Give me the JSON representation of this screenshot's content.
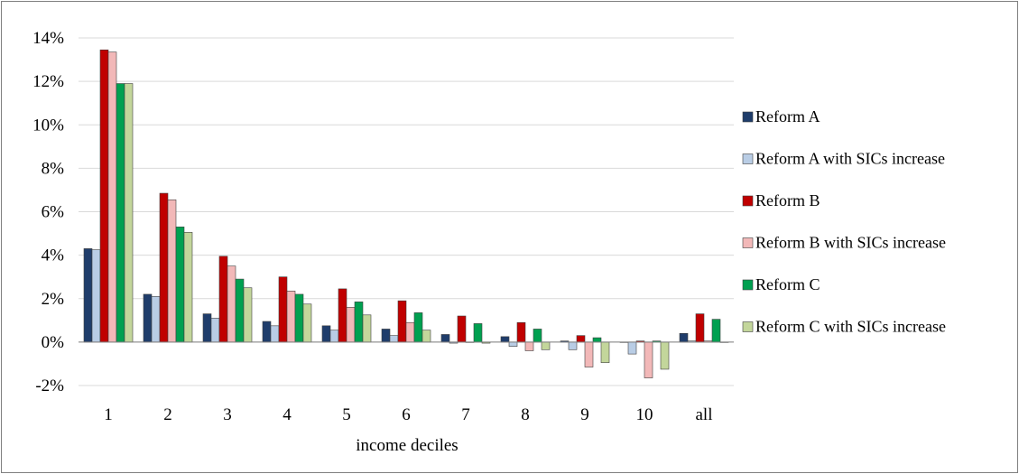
{
  "chart_data": {
    "type": "bar",
    "title": "",
    "xlabel": "income deciles",
    "ylabel": "",
    "ylim": [
      -2,
      14
    ],
    "y_tick_step": 2,
    "y_tick_format": "percent",
    "grid": true,
    "legend_position": "right",
    "categories": [
      "1",
      "2",
      "3",
      "4",
      "5",
      "6",
      "7",
      "8",
      "9",
      "10",
      "all"
    ],
    "series": [
      {
        "name": "Reform A",
        "color": "#1f3d6b",
        "values": [
          4.3,
          2.2,
          1.3,
          0.95,
          0.75,
          0.6,
          0.35,
          0.25,
          0.05,
          0.0,
          0.4
        ]
      },
      {
        "name": "Reform A with SICs increase",
        "color": "#b9cde5",
        "values": [
          4.25,
          2.1,
          1.1,
          0.75,
          0.55,
          0.3,
          -0.05,
          -0.2,
          -0.35,
          -0.55,
          0.05
        ]
      },
      {
        "name": "Reform B",
        "color": "#c00000",
        "values": [
          13.45,
          6.85,
          3.95,
          3.0,
          2.45,
          1.9,
          1.2,
          0.9,
          0.3,
          0.05,
          1.3
        ]
      },
      {
        "name": "Reform B with SICs increase",
        "color": "#f2b8b8",
        "values": [
          13.35,
          6.55,
          3.5,
          2.35,
          1.6,
          0.9,
          0.0,
          -0.4,
          -1.15,
          -1.65,
          0.05
        ]
      },
      {
        "name": "Reform C",
        "color": "#00a050",
        "values": [
          11.9,
          5.3,
          2.9,
          2.2,
          1.85,
          1.35,
          0.85,
          0.6,
          0.2,
          0.05,
          1.05
        ]
      },
      {
        "name": "Reform C with SICs increase",
        "color": "#c3d69b",
        "values": [
          11.9,
          5.05,
          2.5,
          1.75,
          1.25,
          0.55,
          -0.05,
          -0.35,
          -0.95,
          -1.25,
          0.0
        ]
      }
    ]
  }
}
